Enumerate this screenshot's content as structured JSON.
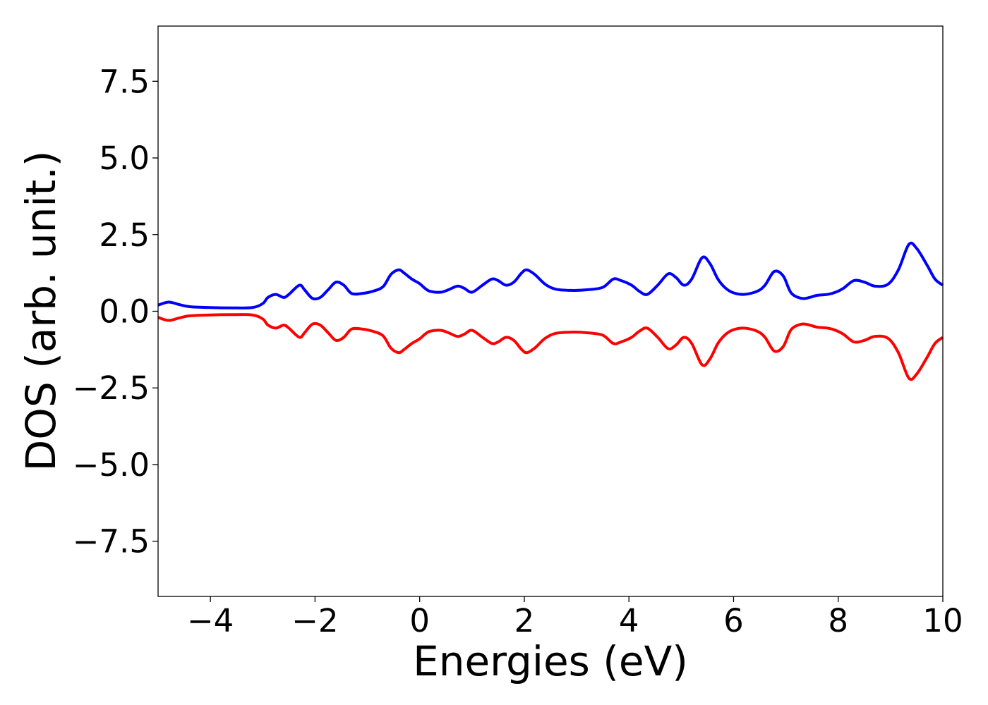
{
  "chart_data": {
    "type": "line",
    "title": "",
    "xlabel": "Energies (eV)",
    "ylabel": "DOS (arb. unit.)",
    "xlim": [
      -5,
      10
    ],
    "ylim": [
      -9.3,
      9.3
    ],
    "xticks": [
      -4,
      -2,
      0,
      2,
      4,
      6,
      8,
      10
    ],
    "xtick_labels": [
      "−4",
      "−2",
      "0",
      "2",
      "4",
      "6",
      "8",
      "10"
    ],
    "yticks": [
      7.5,
      5.0,
      2.5,
      0.0,
      -2.5,
      -5.0,
      -7.5
    ],
    "ytick_labels": [
      "7.5",
      "5.0",
      "2.5",
      "0.0",
      "−2.5",
      "−5.0",
      "−7.5"
    ],
    "grid": false,
    "legend": "none",
    "series": [
      {
        "color": "#0000ff",
        "x": [
          -5.0,
          -4.8,
          -4.6,
          -4.4,
          -4.0,
          -3.6,
          -3.2,
          -3.0,
          -2.9,
          -2.75,
          -2.6,
          -2.5,
          -2.3,
          -2.2,
          -2.05,
          -1.9,
          -1.75,
          -1.6,
          -1.45,
          -1.3,
          -1.1,
          -0.9,
          -0.7,
          -0.55,
          -0.4,
          -0.3,
          -0.15,
          0.0,
          0.1,
          0.2,
          0.4,
          0.55,
          0.72,
          0.85,
          1.0,
          1.2,
          1.38,
          1.5,
          1.65,
          1.8,
          1.95,
          2.05,
          2.2,
          2.4,
          2.6,
          2.9,
          3.2,
          3.5,
          3.7,
          3.85,
          4.05,
          4.2,
          4.35,
          4.55,
          4.75,
          4.9,
          5.05,
          5.2,
          5.4,
          5.55,
          5.7,
          5.85,
          6.0,
          6.2,
          6.45,
          6.6,
          6.78,
          6.95,
          7.1,
          7.3,
          7.45,
          7.6,
          7.8,
          7.95,
          8.1,
          8.3,
          8.5,
          8.7,
          8.95,
          9.15,
          9.35,
          9.5,
          9.7,
          9.85,
          10.0
        ],
        "y": [
          0.2,
          0.3,
          0.22,
          0.15,
          0.12,
          0.11,
          0.12,
          0.25,
          0.45,
          0.55,
          0.45,
          0.55,
          0.85,
          0.7,
          0.42,
          0.45,
          0.7,
          0.95,
          0.85,
          0.58,
          0.58,
          0.65,
          0.8,
          1.2,
          1.35,
          1.25,
          1.05,
          0.9,
          0.75,
          0.65,
          0.62,
          0.7,
          0.82,
          0.75,
          0.62,
          0.85,
          1.05,
          1.0,
          0.85,
          0.95,
          1.25,
          1.35,
          1.2,
          0.88,
          0.72,
          0.68,
          0.7,
          0.78,
          1.05,
          1.0,
          0.85,
          0.65,
          0.55,
          0.85,
          1.22,
          1.1,
          0.85,
          1.05,
          1.75,
          1.55,
          1.05,
          0.75,
          0.6,
          0.55,
          0.65,
          0.85,
          1.3,
          1.15,
          0.6,
          0.42,
          0.45,
          0.52,
          0.55,
          0.62,
          0.75,
          1.0,
          0.95,
          0.82,
          0.88,
          1.35,
          2.18,
          2.05,
          1.5,
          1.05,
          0.85
        ]
      },
      {
        "color": "#ff0000",
        "x": [
          -5.0,
          -4.8,
          -4.6,
          -4.4,
          -4.0,
          -3.6,
          -3.2,
          -3.0,
          -2.9,
          -2.75,
          -2.6,
          -2.5,
          -2.3,
          -2.2,
          -2.05,
          -1.9,
          -1.75,
          -1.6,
          -1.45,
          -1.3,
          -1.1,
          -0.9,
          -0.7,
          -0.55,
          -0.4,
          -0.3,
          -0.15,
          0.0,
          0.1,
          0.2,
          0.4,
          0.55,
          0.72,
          0.85,
          1.0,
          1.2,
          1.38,
          1.5,
          1.65,
          1.8,
          1.95,
          2.05,
          2.2,
          2.4,
          2.6,
          2.9,
          3.2,
          3.5,
          3.7,
          3.85,
          4.05,
          4.2,
          4.35,
          4.55,
          4.75,
          4.9,
          5.05,
          5.2,
          5.4,
          5.55,
          5.7,
          5.85,
          6.0,
          6.2,
          6.45,
          6.6,
          6.78,
          6.95,
          7.1,
          7.3,
          7.45,
          7.6,
          7.8,
          7.95,
          8.1,
          8.3,
          8.5,
          8.7,
          8.95,
          9.15,
          9.35,
          9.5,
          9.7,
          9.85,
          10.0
        ],
        "y": [
          -0.2,
          -0.3,
          -0.22,
          -0.15,
          -0.12,
          -0.11,
          -0.12,
          -0.25,
          -0.45,
          -0.55,
          -0.45,
          -0.55,
          -0.85,
          -0.7,
          -0.42,
          -0.45,
          -0.7,
          -0.95,
          -0.85,
          -0.58,
          -0.58,
          -0.65,
          -0.8,
          -1.2,
          -1.35,
          -1.25,
          -1.05,
          -0.9,
          -0.75,
          -0.65,
          -0.62,
          -0.7,
          -0.82,
          -0.75,
          -0.62,
          -0.85,
          -1.05,
          -1.0,
          -0.85,
          -0.95,
          -1.25,
          -1.35,
          -1.2,
          -0.88,
          -0.72,
          -0.68,
          -0.7,
          -0.78,
          -1.05,
          -1.0,
          -0.85,
          -0.65,
          -0.55,
          -0.85,
          -1.22,
          -1.1,
          -0.85,
          -1.05,
          -1.75,
          -1.55,
          -1.05,
          -0.75,
          -0.6,
          -0.55,
          -0.65,
          -0.85,
          -1.3,
          -1.15,
          -0.6,
          -0.42,
          -0.45,
          -0.52,
          -0.55,
          -0.62,
          -0.75,
          -1.0,
          -0.95,
          -0.82,
          -0.88,
          -1.35,
          -2.18,
          -2.05,
          -1.5,
          -1.05,
          -0.85
        ]
      }
    ]
  }
}
